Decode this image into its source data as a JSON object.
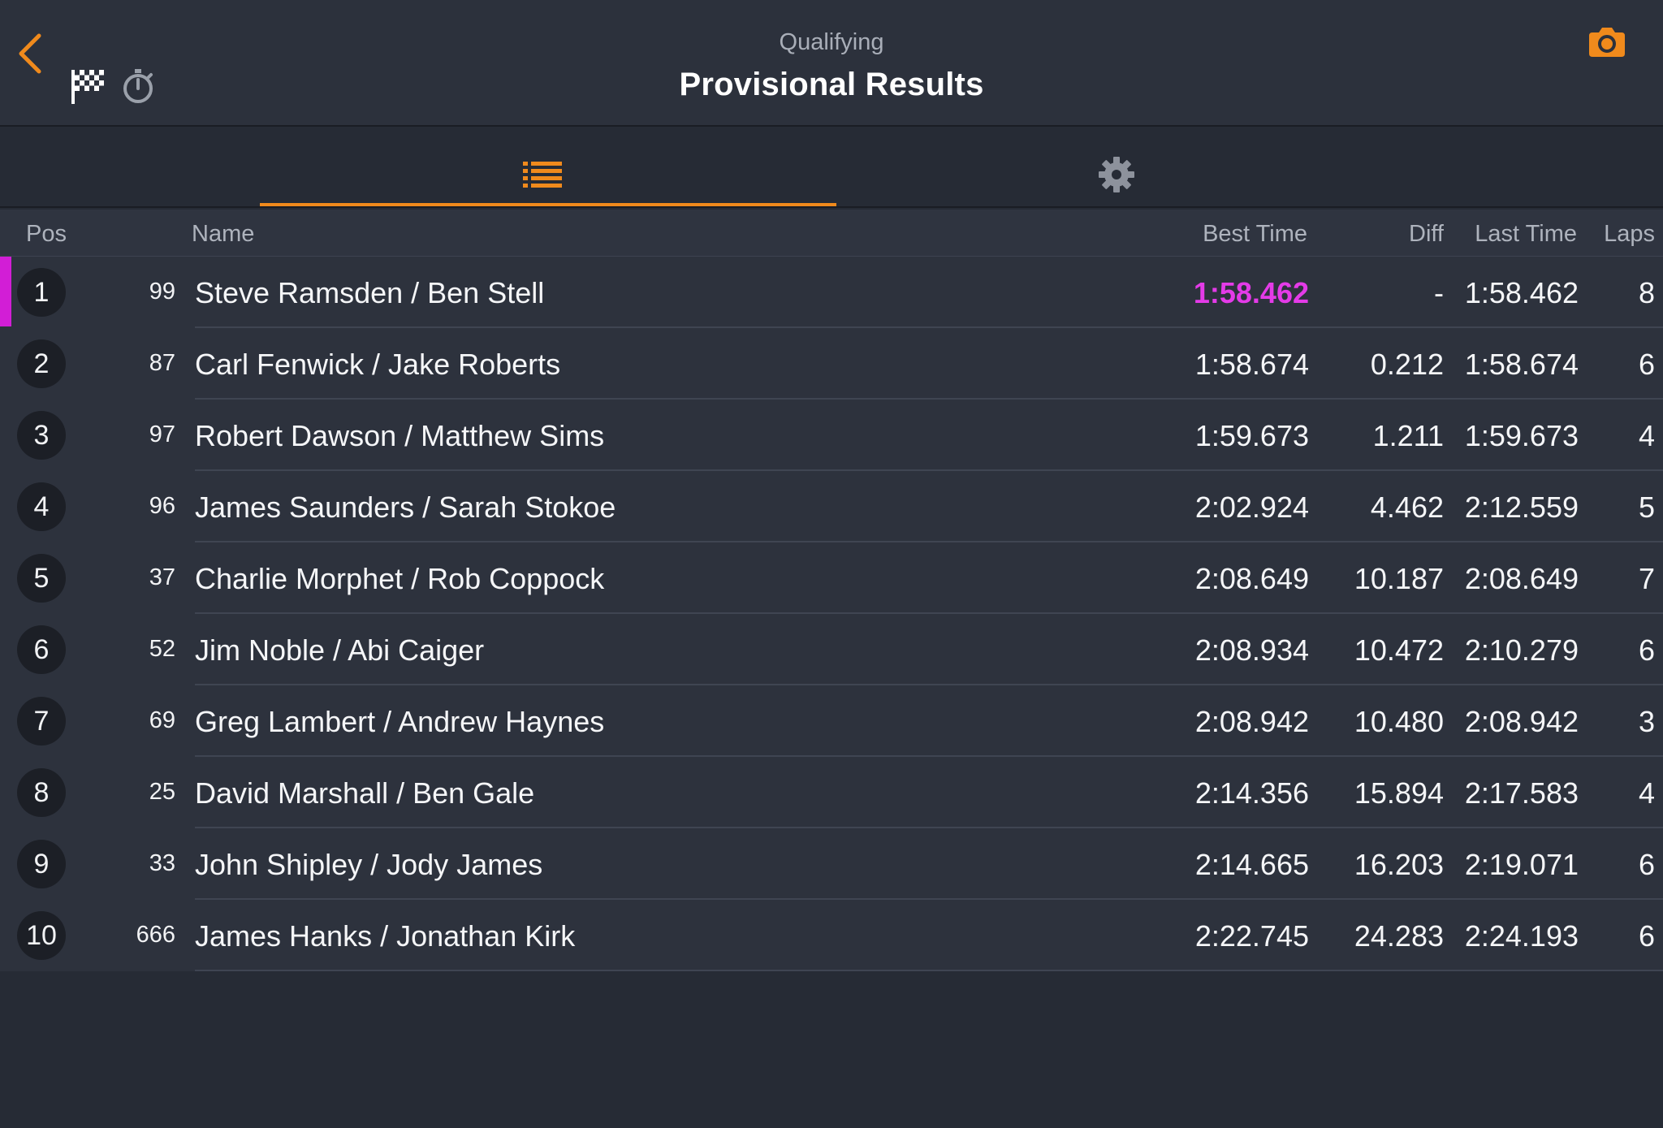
{
  "header": {
    "subtitle": "Qualifying",
    "title": "Provisional Results",
    "icons": [
      "back-chevron-icon",
      "checkered-flag-icon",
      "stopwatch-icon",
      "camera-icon"
    ]
  },
  "tabs": [
    {
      "name": "results-list",
      "icon": "list-icon",
      "selected": true
    },
    {
      "name": "settings",
      "icon": "gear-icon",
      "selected": false
    }
  ],
  "columns": {
    "pos": "Pos",
    "name": "Name",
    "best": "Best Time",
    "diff": "Diff",
    "last": "Last Time",
    "laps": "Laps"
  },
  "rows": [
    {
      "pos": "1",
      "number": "99",
      "name": "Steve Ramsden / Ben Stell",
      "best": "1:58.462",
      "diff": "-",
      "last": "1:58.462",
      "laps": "8"
    },
    {
      "pos": "2",
      "number": "87",
      "name": "Carl Fenwick / Jake Roberts",
      "best": "1:58.674",
      "diff": "0.212",
      "last": "1:58.674",
      "laps": "6"
    },
    {
      "pos": "3",
      "number": "97",
      "name": "Robert Dawson / Matthew Sims",
      "best": "1:59.673",
      "diff": "1.211",
      "last": "1:59.673",
      "laps": "4"
    },
    {
      "pos": "4",
      "number": "96",
      "name": "James Saunders / Sarah Stokoe",
      "best": "2:02.924",
      "diff": "4.462",
      "last": "2:12.559",
      "laps": "5"
    },
    {
      "pos": "5",
      "number": "37",
      "name": "Charlie Morphet / Rob Coppock",
      "best": "2:08.649",
      "diff": "10.187",
      "last": "2:08.649",
      "laps": "7"
    },
    {
      "pos": "6",
      "number": "52",
      "name": "Jim Noble / Abi Caiger",
      "best": "2:08.934",
      "diff": "10.472",
      "last": "2:10.279",
      "laps": "6"
    },
    {
      "pos": "7",
      "number": "69",
      "name": "Greg Lambert / Andrew Haynes",
      "best": "2:08.942",
      "diff": "10.480",
      "last": "2:08.942",
      "laps": "3"
    },
    {
      "pos": "8",
      "number": "25",
      "name": "David Marshall / Ben Gale",
      "best": "2:14.356",
      "diff": "15.894",
      "last": "2:17.583",
      "laps": "4"
    },
    {
      "pos": "9",
      "number": "33",
      "name": "John Shipley / Jody James",
      "best": "2:14.665",
      "diff": "16.203",
      "last": "2:19.071",
      "laps": "6"
    },
    {
      "pos": "10",
      "number": "666",
      "name": "James Hanks / Jonathan Kirk",
      "best": "2:22.745",
      "diff": "24.283",
      "last": "2:24.193",
      "laps": "6"
    }
  ],
  "colors": {
    "accent": "#f08a1c",
    "fastest": "#e43be8",
    "leader_marker": "#d21ed6",
    "background": "#262b35"
  }
}
